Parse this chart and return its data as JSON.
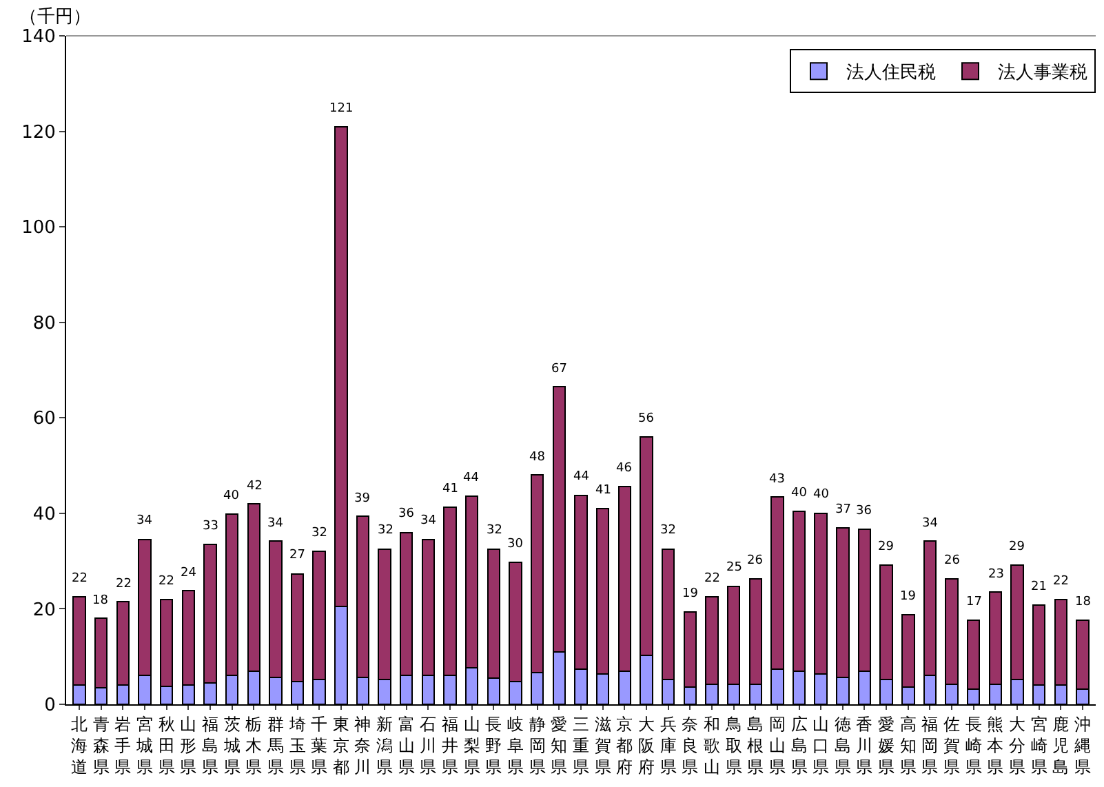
{
  "chart_data": {
    "type": "bar",
    "stacked": true,
    "ylabel": "（千円）",
    "categories": [
      "北海道",
      "青森県",
      "岩手県",
      "宮城県",
      "秋田県",
      "山形県",
      "福島県",
      "茨城県",
      "栃木県",
      "群馬県",
      "埼玉県",
      "千葉県",
      "東京都",
      "神奈川",
      "新潟県",
      "富山県",
      "石川県",
      "福井県",
      "山梨県",
      "長野県",
      "岐阜県",
      "静岡県",
      "愛知県",
      "三重県",
      "滋賀県",
      "京都府",
      "大阪府",
      "兵庫県",
      "奈良県",
      "和歌山",
      "鳥取県",
      "島根県",
      "岡山県",
      "広島県",
      "山口県",
      "徳島県",
      "香川県",
      "愛媛県",
      "高知県",
      "福岡県",
      "佐賀県",
      "長崎県",
      "熊本県",
      "大分県",
      "宮崎県",
      "鹿児島",
      "沖縄県"
    ],
    "series": [
      {
        "name": "法人住民税",
        "color": "#9999ff",
        "values": [
          4.0,
          3.5,
          4.0,
          6.0,
          3.7,
          4.0,
          4.5,
          6.0,
          7.0,
          5.7,
          4.8,
          5.2,
          20.5,
          5.7,
          5.2,
          6.0,
          6.0,
          6.0,
          7.6,
          5.5,
          4.8,
          6.7,
          11.0,
          7.4,
          6.4,
          7.0,
          10.2,
          5.2,
          3.6,
          4.2,
          4.2,
          4.2,
          7.4,
          7.0,
          6.4,
          5.7,
          7.0,
          5.2,
          3.6,
          6.0,
          4.2,
          3.2,
          4.2,
          5.2,
          4.0,
          4.0,
          3.2
        ]
      },
      {
        "name": "法人事業税",
        "color": "#993366",
        "values": [
          18.5,
          14.5,
          17.5,
          28.5,
          18.3,
          19.8,
          29.0,
          33.8,
          35.0,
          28.5,
          22.5,
          26.8,
          100.5,
          33.7,
          27.3,
          30.0,
          28.5,
          35.3,
          36.0,
          27.0,
          25.0,
          41.3,
          55.5,
          36.4,
          34.6,
          38.6,
          45.8,
          27.3,
          15.7,
          18.3,
          20.5,
          22.0,
          36.0,
          33.4,
          33.6,
          31.3,
          29.6,
          24.0,
          15.2,
          28.2,
          22.1,
          14.4,
          19.3,
          24.0,
          16.8,
          18.0,
          14.4
        ]
      }
    ],
    "totals": [
      "22",
      "18",
      "22",
      "34",
      "22",
      "24",
      "33",
      "40",
      "42",
      "34",
      "27",
      "32",
      "121",
      "39",
      "32",
      "36",
      "34",
      "41",
      "44",
      "32",
      "30",
      "48",
      "67",
      "44",
      "41",
      "46",
      "56",
      "32",
      "19",
      "22",
      "25",
      "26",
      "43",
      "40",
      "40",
      "37",
      "36",
      "29",
      "19",
      "34",
      "26",
      "17",
      "23",
      "29",
      "21",
      "22",
      "18"
    ],
    "ylim": [
      0,
      140
    ],
    "yticks": [
      0,
      20,
      40,
      60,
      80,
      100,
      120,
      140
    ],
    "grid": false,
    "legend": "top right"
  }
}
